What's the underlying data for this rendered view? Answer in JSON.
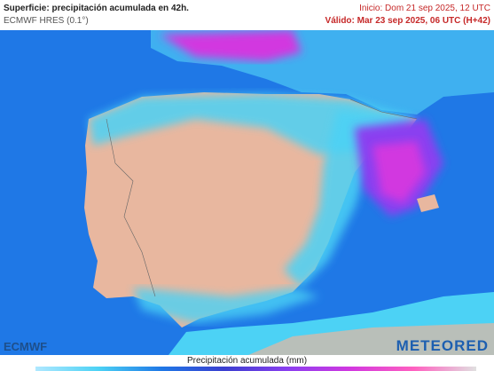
{
  "header": {
    "title": "Superficie: precipitación acumulada en 42h.",
    "model": "ECMWF HRES (0.1°)",
    "start": "Inicio: Dom 21 sep 2025, 12 UTC",
    "valid": "Válido: Mar 23 sep 2025, 06 UTC (H+42)"
  },
  "logos": {
    "left": "ECMWF",
    "right": "METEORED"
  },
  "legend": {
    "title": "Precipitación acumulada (mm)"
  }
}
